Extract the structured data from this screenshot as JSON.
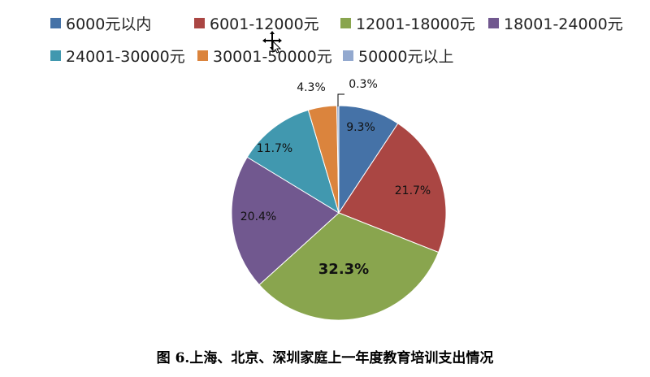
{
  "chart_data": {
    "type": "pie",
    "title": "",
    "legend_placement": "top",
    "categories": [
      "6000元以内",
      "6001-12000元",
      "12001-18000元",
      "18001-24000元",
      "24001-30000元",
      "30001-50000元",
      "50000元以上"
    ],
    "values": [
      9.3,
      21.7,
      32.3,
      20.4,
      11.7,
      4.3,
      0.3
    ],
    "value_labels": [
      "9.3%",
      "21.7%",
      "32.3%",
      "20.4%",
      "11.7%",
      "4.3%",
      "0.3%"
    ],
    "colors": [
      "#4572a7",
      "#aa4643",
      "#89a54e",
      "#71588f",
      "#4198af",
      "#db843d",
      "#93a9cf"
    ]
  },
  "caption": "图 6.上海、北京、深圳家庭上一年度教育培训支出情况"
}
